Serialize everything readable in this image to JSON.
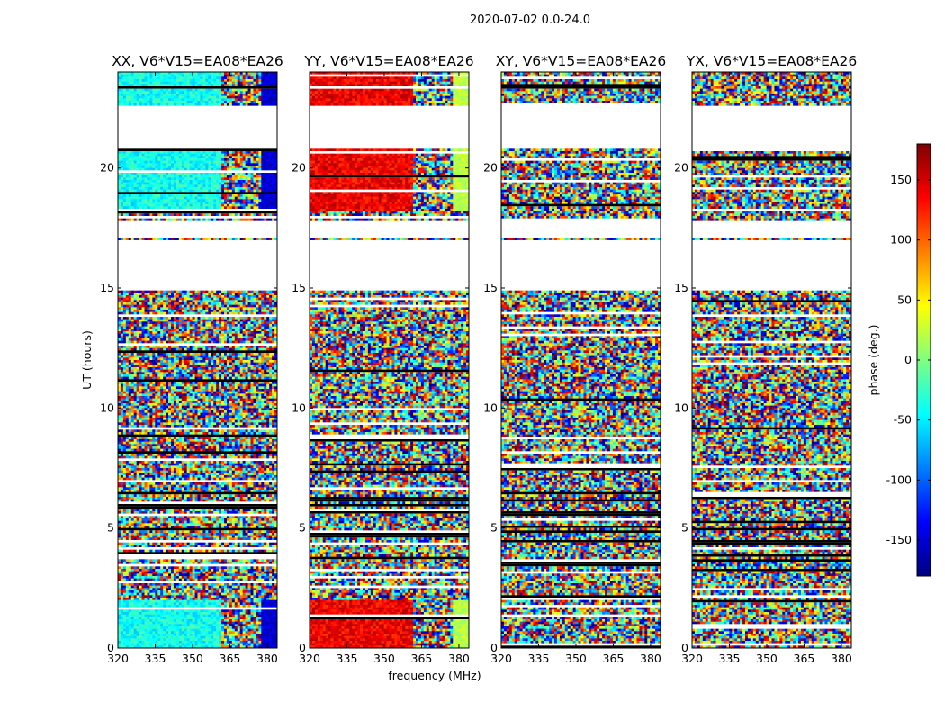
{
  "chart_data": {
    "type": "heatmap",
    "suptitle": "2020-07-02 0.0-24.0",
    "xlabel": "frequency (MHz)",
    "ylabel": "UT (hours)",
    "xlim": [
      320,
      384
    ],
    "ylim": [
      0,
      24
    ],
    "xticks": [
      320,
      335,
      350,
      365,
      380
    ],
    "yticks": [
      0,
      5,
      10,
      15,
      20
    ],
    "colorbar": {
      "label": "phase (deg.)",
      "range": [
        -180,
        180
      ],
      "ticks": [
        150,
        100,
        50,
        0,
        -50,
        -100,
        -150
      ],
      "colormap": "jet",
      "colors": [
        "#00007f",
        "#0000ff",
        "#007fff",
        "#00ffff",
        "#7fff7f",
        "#ffff00",
        "#ff7f00",
        "#ff0000",
        "#7f0000"
      ]
    },
    "flagged_time_ranges_hours": [
      [
        22.4,
        22.6
      ],
      [
        17.8,
        16.9
      ],
      [
        15.0,
        14.9
      ]
    ],
    "panels": [
      {
        "title": "XX, V6*V15=EA08*EA26",
        "pol": "XX",
        "phase_region_low_freq_deg": -40,
        "phase_region_high_freq_deg": -150,
        "mode": "coherent"
      },
      {
        "title": "YY, V6*V15=EA08*EA26",
        "pol": "YY",
        "phase_region_low_freq_deg": 140,
        "phase_region_high_freq_deg": 20,
        "mode": "coherent"
      },
      {
        "title": "XY, V6*V15=EA08*EA26",
        "pol": "XY",
        "phase_region_low_freq_deg": 0,
        "phase_region_high_freq_deg": 0,
        "mode": "noise"
      },
      {
        "title": "YX, V6*V15=EA08*EA26",
        "pol": "YX",
        "phase_region_low_freq_deg": 0,
        "phase_region_high_freq_deg": 0,
        "mode": "noise"
      }
    ]
  }
}
